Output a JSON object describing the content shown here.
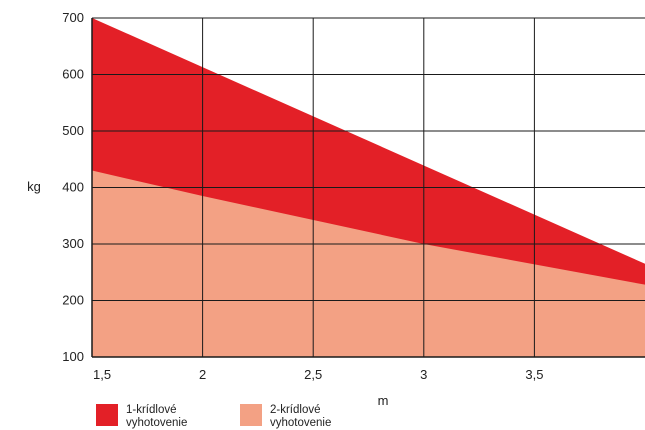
{
  "chart_data": {
    "type": "area",
    "x": [
      1.5,
      4.0
    ],
    "xlim": [
      1.5,
      4.0
    ],
    "ylim": [
      100,
      700
    ],
    "xticks": [
      "1,5",
      "2",
      "2,5",
      "3",
      "3,5"
    ],
    "xtick_values": [
      1.5,
      2,
      2.5,
      3,
      3.5
    ],
    "yticks": [
      "100",
      "200",
      "300",
      "400",
      "500",
      "600",
      "700"
    ],
    "ytick_values": [
      100,
      200,
      300,
      400,
      500,
      600,
      700
    ],
    "xlabel": "m",
    "ylabel": "kg",
    "grid": true,
    "legend_position": "bottom-left",
    "series": [
      {
        "name": "1-krídlové vyhotovenie",
        "x": [
          1.5,
          4.0
        ],
        "values": [
          700,
          265
        ],
        "color": "#e32027"
      },
      {
        "name": "2-krídlové vyhotovenie",
        "x": [
          1.5,
          2.0,
          3.0,
          4.0
        ],
        "values": [
          430,
          385,
          300,
          228
        ],
        "color": "#f3a184"
      }
    ]
  }
}
